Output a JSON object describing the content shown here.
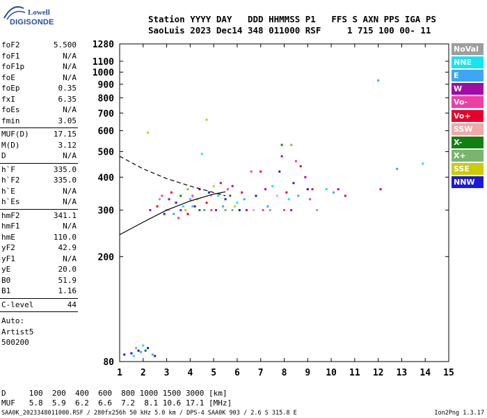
{
  "logo": {
    "line1": "Lowell",
    "line2": "DIGISONDE"
  },
  "header": {
    "line1": "Station YYYY DAY   DDD HHMMSS P1   FFS S AXN PPS IGA PS",
    "line2": "SaoLuis 2023 Dec14 348 011000 RSF     1 715 100 00- 11"
  },
  "params": [
    {
      "name": "foF2",
      "value": "5.500"
    },
    {
      "name": "foF1",
      "value": "N/A"
    },
    {
      "name": "foF1p",
      "value": "N/A"
    },
    {
      "name": "foE",
      "value": "N/A"
    },
    {
      "name": "foEp",
      "value": "0.35"
    },
    {
      "name": "fxI",
      "value": "6.35"
    },
    {
      "name": "foEs",
      "value": "N/A"
    },
    {
      "name": "fmin",
      "value": "3.05"
    },
    {
      "name": "MUF(D)",
      "value": "17.15"
    },
    {
      "name": "M(D)",
      "value": "3.12"
    },
    {
      "name": "D",
      "value": "N/A"
    },
    {
      "name": "h`F",
      "value": "335.0"
    },
    {
      "name": "h`F2",
      "value": "335.0"
    },
    {
      "name": "h`E",
      "value": "N/A"
    },
    {
      "name": "h`Es",
      "value": "N/A"
    },
    {
      "name": "hmF2",
      "value": "341.1"
    },
    {
      "name": "hmF1",
      "value": "N/A"
    },
    {
      "name": "hmE",
      "value": "110.0"
    },
    {
      "name": "yF2",
      "value": "42.9"
    },
    {
      "name": "yF1",
      "value": "N/A"
    },
    {
      "name": "yE",
      "value": "20.0"
    },
    {
      "name": "B0",
      "value": "51.9"
    },
    {
      "name": "B1",
      "value": "1.16"
    },
    {
      "name": "C-level",
      "value": "44"
    }
  ],
  "auto": {
    "line1": "Auto:",
    "line2": "Artist5",
    "line3": "500200"
  },
  "legend": [
    {
      "label": "NoVal",
      "color": "#9e9e9e"
    },
    {
      "label": "NNE",
      "color": "#11e6f2"
    },
    {
      "label": "E",
      "color": "#3fa6f5"
    },
    {
      "label": "W",
      "color": "#a30aa8"
    },
    {
      "label": "Vo-",
      "color": "#ee3fa3"
    },
    {
      "label": "Vo+",
      "color": "#e8002a"
    },
    {
      "label": "SSW",
      "color": "#f2a9a9"
    },
    {
      "label": "X-",
      "color": "#10800f"
    },
    {
      "label": "X+",
      "color": "#7bb46d"
    },
    {
      "label": "SSE",
      "color": "#cccc00"
    },
    {
      "label": "NNW",
      "color": "#1a1ad8"
    }
  ],
  "footer": {
    "d_row": "D     100  200  400  600  800 1000 1500 3000 [km]",
    "muf_row": "MUF   5.8  5.9  6.2  6.6  7.2  8.1 10.6 17.1 [MHz]",
    "info": "SAA0K_2023348011000.RSF / 280fx256h 50 kHz 5.0 km / DPS-4 SAA0K 903 / 2.6 S 315.8 E",
    "version": "Ion2Png 1.3.17"
  },
  "chart_data": {
    "type": "scatter",
    "xlim": [
      1,
      15
    ],
    "ylim": [
      80,
      1280
    ],
    "y_scale": "log",
    "xticks": [
      1,
      2,
      3,
      4,
      5,
      6,
      7,
      8,
      9,
      10,
      11,
      12,
      13,
      14,
      15
    ],
    "yticks": [
      80,
      200,
      300,
      400,
      500,
      600,
      700,
      800,
      900,
      1000,
      1100,
      1280
    ],
    "series": [
      {
        "color": "#1a1ad8",
        "points": [
          [
            1.2,
            85
          ],
          [
            1.5,
            86
          ],
          [
            1.8,
            88
          ],
          [
            2.2,
            90
          ],
          [
            2.5,
            84
          ],
          [
            2.9,
            290
          ],
          [
            3.4,
            320
          ],
          [
            4.2,
            310
          ],
          [
            4.8,
            350
          ],
          [
            5.5,
            330
          ],
          [
            6.1,
            300
          ],
          [
            6.8,
            340
          ],
          [
            7.8,
            420
          ],
          [
            8.4,
            380
          ],
          [
            9.0,
            360
          ]
        ]
      },
      {
        "color": "#a30aa8",
        "points": [
          [
            2.3,
            300
          ],
          [
            3.1,
            330
          ],
          [
            3.6,
            300
          ],
          [
            4.4,
            360
          ],
          [
            5.1,
            300
          ],
          [
            5.8,
            370
          ],
          [
            6.4,
            300
          ],
          [
            7.2,
            360
          ],
          [
            7.9,
            480
          ],
          [
            8.3,
            300
          ],
          [
            8.9,
            400
          ],
          [
            10.3,
            360
          ]
        ]
      },
      {
        "color": "#e8002a",
        "points": [
          [
            2.6,
            310
          ],
          [
            3.2,
            350
          ],
          [
            3.9,
            290
          ],
          [
            4.7,
            320
          ],
          [
            5.3,
            380
          ],
          [
            6.2,
            350
          ],
          [
            7.0,
            420
          ],
          [
            8.1,
            350
          ],
          [
            8.7,
            440
          ],
          [
            9.2,
            360
          ],
          [
            10.6,
            340
          ],
          [
            12.1,
            360
          ]
        ]
      },
      {
        "color": "#ee3fa3",
        "points": [
          [
            2.8,
            340
          ],
          [
            3.5,
            280
          ],
          [
            4.1,
            340
          ],
          [
            4.9,
            300
          ],
          [
            5.6,
            360
          ],
          [
            6.6,
            420
          ],
          [
            7.1,
            300
          ],
          [
            8.0,
            300
          ],
          [
            8.5,
            460
          ],
          [
            9.1,
            330
          ]
        ]
      },
      {
        "color": "#11e6f2",
        "points": [
          [
            1.6,
            84
          ],
          [
            2.0,
            92
          ],
          [
            3.0,
            300
          ],
          [
            3.7,
            310
          ],
          [
            4.5,
            490
          ],
          [
            5.2,
            340
          ],
          [
            6.0,
            320
          ],
          [
            7.5,
            370
          ],
          [
            8.2,
            330
          ],
          [
            9.8,
            360
          ],
          [
            13.9,
            450
          ]
        ]
      },
      {
        "color": "#3fa6f5",
        "points": [
          [
            1.9,
            87
          ],
          [
            2.4,
            85
          ],
          [
            3.3,
            290
          ],
          [
            4.0,
            330
          ],
          [
            4.6,
            300
          ],
          [
            5.4,
            310
          ],
          [
            6.3,
            330
          ],
          [
            7.3,
            310
          ],
          [
            8.6,
            340
          ],
          [
            10.1,
            350
          ],
          [
            12.0,
            930
          ],
          [
            12.8,
            430
          ]
        ]
      },
      {
        "color": "#cccc00",
        "points": [
          [
            2.2,
            590
          ],
          [
            3.8,
            300
          ],
          [
            4.3,
            330
          ],
          [
            5.0,
            370
          ],
          [
            5.9,
            310
          ],
          [
            4.7,
            660
          ]
        ]
      },
      {
        "color": "#10800f",
        "points": [
          [
            2.1,
            88
          ],
          [
            3.6,
            340
          ],
          [
            4.4,
            300
          ],
          [
            5.7,
            340
          ],
          [
            7.9,
            530
          ]
        ]
      },
      {
        "color": "#7bb46d",
        "points": [
          [
            1.7,
            90
          ],
          [
            3.9,
            360
          ],
          [
            5.5,
            300
          ],
          [
            8.3,
            530
          ]
        ]
      },
      {
        "color": "#f2a9a9",
        "points": [
          [
            3.1,
            300
          ],
          [
            4.9,
            340
          ],
          [
            6.7,
            300
          ],
          [
            7.7,
            340
          ]
        ]
      },
      {
        "color": "#9e9e9e",
        "points": [
          [
            2.7,
            330
          ],
          [
            4.1,
            310
          ],
          [
            5.8,
            300
          ],
          [
            7.4,
            300
          ],
          [
            9.4,
            300
          ]
        ]
      }
    ],
    "curves": [
      {
        "style": "dashed",
        "points": [
          [
            1.0,
            480
          ],
          [
            2.0,
            430
          ],
          [
            3.0,
            395
          ],
          [
            4.0,
            370
          ],
          [
            5.0,
            350
          ],
          [
            5.5,
            340
          ]
        ]
      },
      {
        "style": "solid",
        "points": [
          [
            1.0,
            242
          ],
          [
            2.0,
            270
          ],
          [
            3.0,
            300
          ],
          [
            4.0,
            325
          ],
          [
            5.0,
            345
          ],
          [
            5.5,
            352
          ]
        ]
      }
    ]
  }
}
